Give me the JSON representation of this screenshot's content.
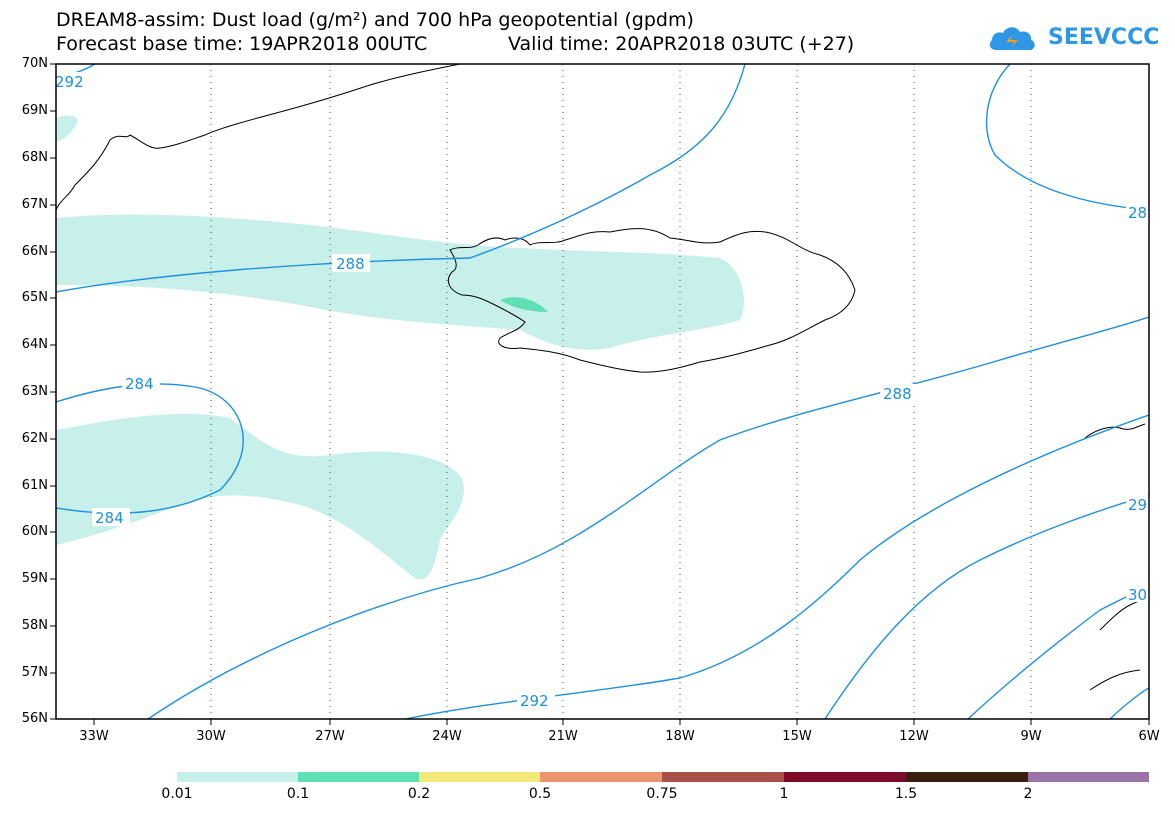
{
  "header": {
    "title_line1": "DREAM8-assim: Dust load (g/m²) and 700 hPa geopotential (gpdm)",
    "forecast_base": "Forecast base time: 19APR2018 00UTC",
    "valid_time": "Valid time: 20APR2018 03UTC (+27)"
  },
  "logo": {
    "text": "SEEVCCC",
    "icon": "cloud-icon",
    "color": "#2f97e6"
  },
  "axes": {
    "lat_labels": [
      "70N",
      "69N",
      "68N",
      "67N",
      "66N",
      "65N",
      "64N",
      "63N",
      "62N",
      "61N",
      "60N",
      "59N",
      "58N",
      "57N",
      "56N"
    ],
    "lon_labels": [
      "33W",
      "30W",
      "27W",
      "24W",
      "21W",
      "18W",
      "15W",
      "12W",
      "9W",
      "6W"
    ]
  },
  "contours": {
    "color": "#1e90e0",
    "labels": [
      "292",
      "288",
      "284",
      "284",
      "288",
      "292",
      "28",
      "29",
      "30"
    ]
  },
  "colorbar": {
    "colors": [
      "#c8f0ea",
      "#5fe0b4",
      "#f5e87a",
      "#eb9470",
      "#a85048",
      "#7d0a28",
      "#3a1e12",
      "#9c73a8"
    ],
    "labels": [
      "0.01",
      "0.1",
      "0.2",
      "0.5",
      "0.75",
      "1",
      "1.5",
      "2"
    ]
  }
}
